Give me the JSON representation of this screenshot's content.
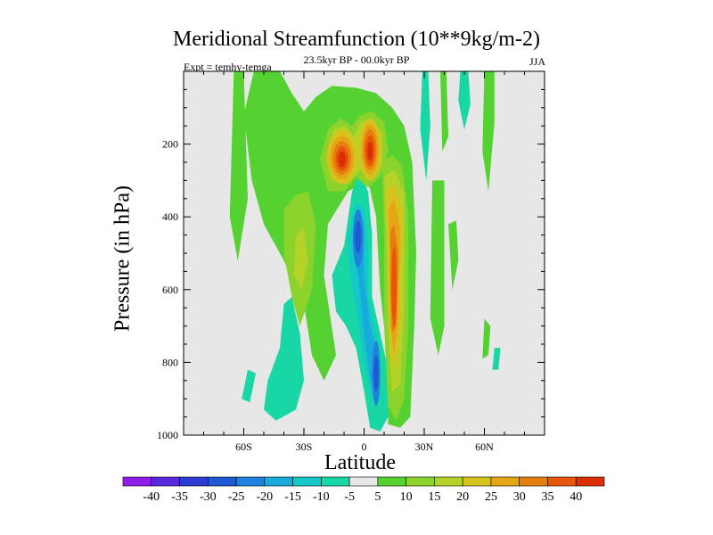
{
  "chart_data": {
    "type": "heatmap",
    "title": "Meridional Streamfunction (10**9kg/m-2)",
    "subtitle": "23.5kyr BP - 00.0kyr BP",
    "left_label": "Expt = temhy-temga",
    "right_label": "JJA",
    "xlabel": "Latitude",
    "ylabel": "Pressure (in hPa)",
    "xlim": [
      -90,
      90
    ],
    "ylim": [
      1000,
      0
    ],
    "x_ticks": [
      {
        "value": -60,
        "label": "60S"
      },
      {
        "value": -30,
        "label": "30S"
      },
      {
        "value": 0,
        "label": "0"
      },
      {
        "value": 30,
        "label": "30N"
      },
      {
        "value": 60,
        "label": "60N"
      }
    ],
    "y_ticks": [
      {
        "value": 200,
        "label": "200"
      },
      {
        "value": 400,
        "label": "400"
      },
      {
        "value": 600,
        "label": "600"
      },
      {
        "value": 800,
        "label": "800"
      },
      {
        "value": 1000,
        "label": "1000"
      }
    ],
    "colorbar": {
      "labels": [
        "-40",
        "-35",
        "-30",
        "-25",
        "-20",
        "-15",
        "-10",
        "-5",
        "5",
        "10",
        "15",
        "20",
        "25",
        "30",
        "35",
        "40"
      ],
      "colors": [
        "#8e1ee6",
        "#5a28dc",
        "#2d3cd2",
        "#1e5ad2",
        "#1e82dc",
        "#19aadc",
        "#14c8c8",
        "#19d7a5",
        "#e6e6e6",
        "#55d232",
        "#8cd22d",
        "#b4d228",
        "#d7c31e",
        "#e6a514",
        "#e67d0f",
        "#e6550a",
        "#dc2d05"
      ]
    },
    "features": [
      {
        "name": "strongest positive cell",
        "lat": -12,
        "pressure": 240,
        "value": 40
      },
      {
        "name": "strong positive cell",
        "lat": 2,
        "pressure": 230,
        "value": 40
      },
      {
        "name": "positive column",
        "lat": 15,
        "pressure": 600,
        "value": 35
      },
      {
        "name": "negative column",
        "lat": -3,
        "pressure": 460,
        "value": -30
      },
      {
        "name": "negative lower lobe",
        "lat": 7,
        "pressure": 850,
        "value": -25
      },
      {
        "name": "southern positive band",
        "lat": -40,
        "pressure": 450,
        "value": 15
      },
      {
        "name": "southern weak negative",
        "lat": -32,
        "pressure": 850,
        "value": -5
      }
    ]
  }
}
